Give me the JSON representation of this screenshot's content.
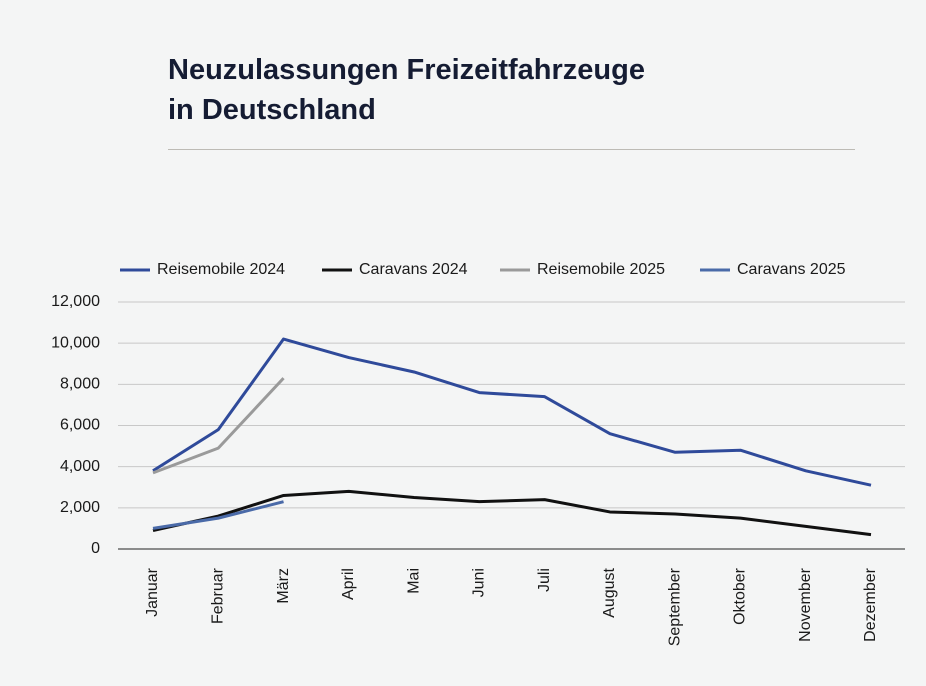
{
  "chart_data": {
    "type": "line",
    "title": "Neuzulassungen Freizeitfahrzeuge\nin Deutschland",
    "categories": [
      "Januar",
      "Februar",
      "März",
      "April",
      "Mai",
      "Juni",
      "Juli",
      "August",
      "September",
      "Oktober",
      "November",
      "Dezember"
    ],
    "series": [
      {
        "name": "Reisemobile 2024",
        "color": "#2f4a9a",
        "values": [
          3800,
          5800,
          10200,
          9300,
          8600,
          7600,
          7400,
          5600,
          4700,
          4800,
          3800,
          3100
        ]
      },
      {
        "name": "Caravans 2024",
        "color": "#111111",
        "values": [
          900,
          1600,
          2600,
          2800,
          2500,
          2300,
          2400,
          1800,
          1700,
          1500,
          1100,
          700
        ]
      },
      {
        "name": "Reisemobile 2025",
        "color": "#9a9a9a",
        "values": [
          3700,
          4900,
          8300,
          null,
          null,
          null,
          null,
          null,
          null,
          null,
          null,
          null
        ]
      },
      {
        "name": "Caravans 2025",
        "color": "#4a6aa8",
        "values": [
          1000,
          1500,
          2300,
          null,
          null,
          null,
          null,
          null,
          null,
          null,
          null,
          null
        ]
      }
    ],
    "ylim": [
      0,
      12000
    ],
    "yticks": [
      0,
      {
        "value": 2000,
        "label": "2,000"
      },
      {
        "value": 4000,
        "label": "4,000"
      },
      {
        "value": 6000,
        "label": "6,000"
      },
      {
        "value": 8000,
        "label": "8,000"
      },
      {
        "value": 10000,
        "label": "10,000"
      },
      {
        "value": 12000,
        "label": "12,000"
      }
    ],
    "grid": true
  }
}
